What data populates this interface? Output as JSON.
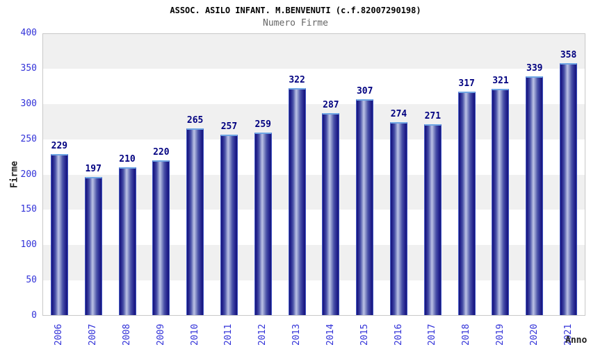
{
  "header": {
    "title": "ASSOC. ASILO INFANT. M.BENVENUTI (c.f.82007290198)",
    "subtitle": "Numero Firme"
  },
  "chart_data": {
    "type": "bar",
    "title": "ASSOC. ASILO INFANT. M.BENVENUTI (c.f.82007290198)",
    "subtitle": "Numero Firme",
    "categories": [
      "2006",
      "2007",
      "2008",
      "2009",
      "2010",
      "2011",
      "2012",
      "2013",
      "2014",
      "2015",
      "2016",
      "2017",
      "2018",
      "2019",
      "2020",
      "2021"
    ],
    "values": [
      229,
      197,
      210,
      220,
      265,
      257,
      259,
      322,
      287,
      307,
      274,
      271,
      317,
      321,
      339,
      358
    ],
    "xlabel": "Anno",
    "ylabel": "Firme",
    "ylim": [
      0,
      400
    ],
    "ytick_step": 50,
    "yticks": [
      0,
      50,
      100,
      150,
      200,
      250,
      300,
      350,
      400
    ],
    "legend": "none",
    "grid": "alternating-horizontal-bands",
    "colors": {
      "bar_edge": "#14147a",
      "bar_highlight": "#bcc2e6",
      "bar_cap": "#6fa6e4",
      "bar_outline": "#4457c4",
      "tick_label": "#3232d8",
      "value_label": "#000080",
      "band_gray": "#f0f0f0",
      "band_white": "#ffffff",
      "plot_border": "#c8c8c8",
      "title": "#000000",
      "subtitle": "#666666",
      "axis_title": "#222222"
    }
  }
}
